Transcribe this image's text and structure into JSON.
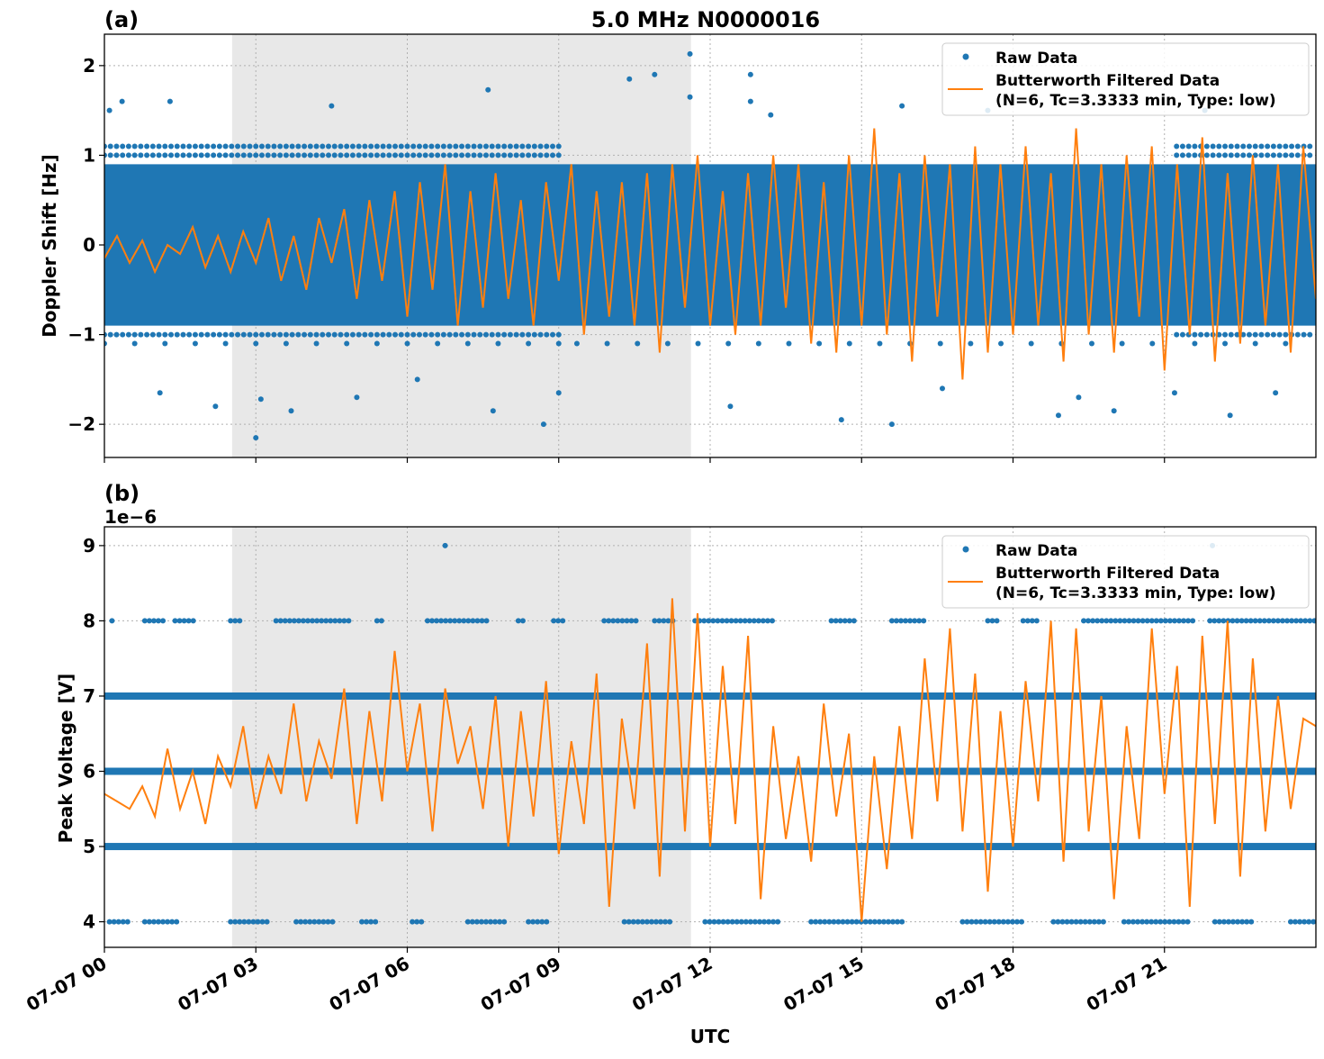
{
  "figure_title": "5.0 MHz N0000016",
  "colors": {
    "raw": "#1f77b4",
    "filtered": "#ff7f0e",
    "shade": "#e8e8e8"
  },
  "chart_data": [
    {
      "type": "line",
      "panel_label": "(a)",
      "title": "5.0 MHz N0000016",
      "xlabel": "",
      "ylabel": "Doppler Shift [Hz]",
      "ylim": [
        -2.37,
        2.35
      ],
      "xlim_hours": [
        0,
        24
      ],
      "yticks": [
        2,
        1,
        0,
        -1,
        -2
      ],
      "ytick_labels": [
        "2",
        "1",
        "0",
        "−1",
        "−2"
      ],
      "grid": true,
      "legend_position": "top-right",
      "shaded_interval_hours": [
        2.53,
        11.62
      ],
      "series": [
        {
          "name": "Raw Data",
          "kind": "scatter",
          "core_band": [
            -0.9,
            0.9
          ],
          "outliers": [
            [
              0.1,
              1.5
            ],
            [
              0.35,
              1.6
            ],
            [
              1.3,
              1.6
            ],
            [
              2.2,
              -1.8
            ],
            [
              3.0,
              -2.15
            ],
            [
              3.1,
              -1.72
            ],
            [
              3.7,
              -1.85
            ],
            [
              4.5,
              1.55
            ],
            [
              6.2,
              -1.5
            ],
            [
              7.6,
              1.73
            ],
            [
              7.7,
              -1.85
            ],
            [
              8.7,
              -2.0
            ],
            [
              10.4,
              1.85
            ],
            [
              10.9,
              1.9
            ],
            [
              11.6,
              2.13
            ],
            [
              11.6,
              1.65
            ],
            [
              12.4,
              -1.8
            ],
            [
              12.8,
              1.9
            ],
            [
              12.8,
              1.6
            ],
            [
              14.6,
              -1.95
            ],
            [
              15.6,
              -2.0
            ],
            [
              15.8,
              1.55
            ],
            [
              18.9,
              -1.9
            ],
            [
              19.3,
              -1.7
            ],
            [
              20.0,
              -1.85
            ],
            [
              21.2,
              -1.65
            ],
            [
              22.3,
              -1.9
            ],
            [
              23.2,
              -1.65
            ],
            [
              1.1,
              -1.65
            ],
            [
              5.0,
              -1.7
            ],
            [
              9.0,
              -1.65
            ],
            [
              16.6,
              -1.6
            ],
            [
              17.5,
              1.5
            ],
            [
              13.2,
              1.45
            ],
            [
              21.8,
              1.5
            ]
          ]
        },
        {
          "name": "Butterworth Filtered Data\n(N=6, Tc=3.3333 min, Type: low)",
          "kind": "line",
          "x_step_hours": 0.25,
          "values": [
            -0.15,
            0.1,
            -0.2,
            0.05,
            -0.3,
            0.0,
            -0.1,
            0.2,
            -0.25,
            0.1,
            -0.3,
            0.15,
            -0.2,
            0.3,
            -0.4,
            0.1,
            -0.5,
            0.3,
            -0.2,
            0.4,
            -0.6,
            0.5,
            -0.4,
            0.6,
            -0.8,
            0.7,
            -0.5,
            0.9,
            -0.9,
            0.6,
            -0.7,
            0.8,
            -0.6,
            0.5,
            -0.9,
            0.7,
            -0.4,
            0.9,
            -1.0,
            0.6,
            -0.8,
            0.7,
            -0.9,
            0.8,
            -1.2,
            0.9,
            -0.7,
            1.0,
            -0.9,
            0.6,
            -1.0,
            0.8,
            -0.9,
            1.0,
            -0.7,
            0.9,
            -1.1,
            0.7,
            -1.2,
            1.0,
            -0.9,
            1.3,
            -1.0,
            0.8,
            -1.3,
            1.0,
            -0.8,
            0.9,
            -1.5,
            1.1,
            -1.2,
            0.9,
            -1.0,
            1.1,
            -0.9,
            0.8,
            -1.3,
            1.3,
            -1.0,
            0.9,
            -1.2,
            1.0,
            -0.8,
            1.1,
            -1.4,
            0.9,
            -1.0,
            1.2,
            -1.3,
            0.8,
            -1.1,
            1.0,
            -0.9,
            0.9,
            -1.2,
            1.1,
            -0.6
          ]
        }
      ]
    },
    {
      "type": "line",
      "panel_label": "(b)",
      "xlabel": "UTC",
      "ylabel": "Peak Voltage [V]",
      "y_offset_label": "1e−6",
      "ylim": [
        3.66,
        9.25
      ],
      "xlim_hours": [
        0,
        24
      ],
      "yticks": [
        9,
        8,
        7,
        6,
        5,
        4
      ],
      "ytick_labels": [
        "9",
        "8",
        "7",
        "6",
        "5",
        "4"
      ],
      "xtick_labels": [
        "07-07 00",
        "07-07 03",
        "07-07 06",
        "07-07 09",
        "07-07 12",
        "07-07 15",
        "07-07 18",
        "07-07 21"
      ],
      "xtick_hours": [
        0,
        3,
        6,
        9,
        12,
        15,
        18,
        21
      ],
      "grid": true,
      "legend_position": "top-right",
      "shaded_interval_hours": [
        2.53,
        11.62
      ],
      "series": [
        {
          "name": "Raw Data",
          "kind": "scatter",
          "continuous_levels": [
            5,
            6,
            7
          ],
          "level_8_hour_ranges": [
            [
              0.15,
              0.15
            ],
            [
              0.8,
              1.2
            ],
            [
              1.4,
              1.8
            ],
            [
              2.5,
              2.7
            ],
            [
              3.4,
              4.9
            ],
            [
              5.4,
              5.5
            ],
            [
              6.4,
              7.6
            ],
            [
              8.2,
              8.3
            ],
            [
              8.9,
              9.1
            ],
            [
              9.9,
              10.6
            ],
            [
              10.9,
              11.3
            ],
            [
              11.7,
              13.3
            ],
            [
              14.4,
              14.9
            ],
            [
              15.6,
              16.3
            ],
            [
              17.5,
              17.7
            ],
            [
              18.2,
              18.5
            ],
            [
              19.4,
              21.6
            ],
            [
              21.9,
              24.0
            ]
          ],
          "level_4_hour_ranges": [
            [
              0.1,
              0.5
            ],
            [
              0.8,
              1.5
            ],
            [
              2.5,
              3.3
            ],
            [
              3.8,
              4.6
            ],
            [
              5.1,
              5.4
            ],
            [
              6.1,
              6.3
            ],
            [
              7.2,
              8.0
            ],
            [
              8.4,
              8.8
            ],
            [
              10.3,
              11.2
            ],
            [
              11.9,
              13.4
            ],
            [
              14.0,
              15.8
            ],
            [
              17.0,
              18.2
            ],
            [
              18.8,
              19.8
            ],
            [
              20.2,
              21.5
            ],
            [
              22.0,
              22.8
            ],
            [
              23.5,
              24.0
            ]
          ],
          "level_9_hours": [
            6.75,
            21.95
          ]
        },
        {
          "name": "Butterworth Filtered Data\n(N=6, Tc=3.3333 min, Type: low)",
          "kind": "line",
          "x_step_hours": 0.25,
          "values": [
            5.7,
            5.6,
            5.5,
            5.8,
            5.4,
            6.3,
            5.5,
            6.0,
            5.3,
            6.2,
            5.8,
            6.6,
            5.5,
            6.2,
            5.7,
            6.9,
            5.6,
            6.4,
            5.9,
            7.1,
            5.3,
            6.8,
            5.6,
            7.6,
            6.0,
            6.9,
            5.2,
            7.1,
            6.1,
            6.6,
            5.5,
            7.0,
            5.0,
            6.8,
            5.4,
            7.2,
            4.9,
            6.4,
            5.3,
            7.3,
            4.2,
            6.7,
            5.5,
            7.7,
            4.6,
            8.3,
            5.2,
            8.1,
            5.0,
            7.4,
            5.3,
            7.8,
            4.3,
            6.6,
            5.1,
            6.2,
            4.8,
            6.9,
            5.4,
            6.5,
            4.0,
            6.2,
            4.7,
            6.6,
            5.1,
            7.5,
            5.6,
            7.9,
            5.2,
            7.3,
            4.4,
            6.8,
            5.0,
            7.2,
            5.6,
            8.0,
            4.8,
            7.9,
            5.2,
            7.0,
            4.3,
            6.6,
            5.1,
            7.9,
            5.7,
            7.4,
            4.2,
            7.8,
            5.3,
            8.0,
            4.6,
            7.5,
            5.2,
            7.0,
            5.5,
            6.7,
            6.6
          ]
        }
      ]
    }
  ],
  "legend": {
    "raw_label": "Raw Data",
    "filtered_line1": "Butterworth Filtered Data",
    "filtered_line2": "(N=6, Tc=3.3333 min, Type: low)"
  }
}
